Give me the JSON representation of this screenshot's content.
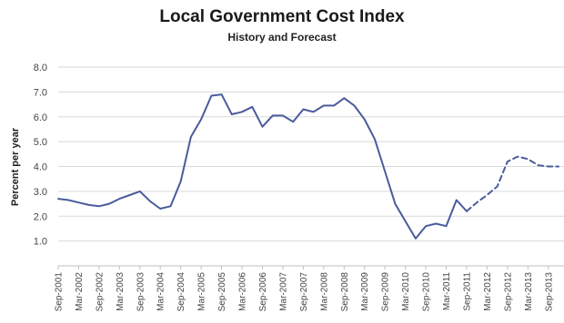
{
  "chart_data": {
    "type": "line",
    "title": "Local Government Cost Index",
    "subtitle": "History and Forecast",
    "xlabel": "",
    "ylabel": "Percent per year",
    "ylim": [
      0,
      8
    ],
    "y_ticks": [
      "",
      "1.0",
      "2.0",
      "3.0",
      "4.0",
      "5.0",
      "6.0",
      "7.0",
      "8.0"
    ],
    "grid": true,
    "legend": "none",
    "x_tick_labels": [
      "Sep-2001",
      "Mar-2002",
      "Sep-2002",
      "Mar-2003",
      "Sep-2003",
      "Mar-2004",
      "Sep-2004",
      "Mar-2005",
      "Sep-2005",
      "Mar-2006",
      "Sep-2006",
      "Mar-2007",
      "Sep-2007",
      "Mar-2008",
      "Sep-2008",
      "Mar-2009",
      "Sep-2009",
      "Mar-2010",
      "Sep-2010",
      "Mar-2011",
      "Sep-2011",
      "Mar-2012",
      "Sep-2012",
      "Mar-2013",
      "Sep-2013"
    ],
    "series": [
      {
        "style": "solid",
        "points": [
          [
            "Sep-2001",
            2.7
          ],
          [
            "Dec-2001",
            2.65
          ],
          [
            "Mar-2002",
            2.55
          ],
          [
            "Jun-2002",
            2.45
          ],
          [
            "Sep-2002",
            2.4
          ],
          [
            "Dec-2002",
            2.5
          ],
          [
            "Mar-2003",
            2.7
          ],
          [
            "Jun-2003",
            2.85
          ],
          [
            "Sep-2003",
            3.0
          ],
          [
            "Dec-2003",
            2.6
          ],
          [
            "Mar-2004",
            2.3
          ],
          [
            "Jun-2004",
            2.4
          ],
          [
            "Sep-2004",
            3.4
          ],
          [
            "Dec-2004",
            5.2
          ],
          [
            "Mar-2005",
            5.9
          ],
          [
            "Jun-2005",
            6.85
          ],
          [
            "Sep-2005",
            6.9
          ],
          [
            "Dec-2005",
            6.1
          ],
          [
            "Mar-2006",
            6.2
          ],
          [
            "Jun-2006",
            6.4
          ],
          [
            "Sep-2006",
            5.6
          ],
          [
            "Dec-2006",
            6.05
          ],
          [
            "Mar-2007",
            6.05
          ],
          [
            "Jun-2007",
            5.8
          ],
          [
            "Sep-2007",
            6.3
          ],
          [
            "Dec-2007",
            6.2
          ],
          [
            "Mar-2008",
            6.45
          ],
          [
            "Jun-2008",
            6.45
          ],
          [
            "Sep-2008",
            6.75
          ],
          [
            "Dec-2008",
            6.45
          ],
          [
            "Mar-2009",
            5.9
          ],
          [
            "Jun-2009",
            5.1
          ],
          [
            "Sep-2009",
            3.8
          ],
          [
            "Dec-2009",
            2.5
          ],
          [
            "Mar-2010",
            1.8
          ],
          [
            "Jun-2010",
            1.1
          ],
          [
            "Sep-2010",
            1.6
          ],
          [
            "Dec-2010",
            1.7
          ],
          [
            "Mar-2011",
            1.6
          ],
          [
            "Jun-2011",
            2.65
          ],
          [
            "Sep-2011",
            2.2
          ]
        ]
      },
      {
        "style": "dashed",
        "points": [
          [
            "Sep-2011",
            2.2
          ],
          [
            "Dec-2011",
            2.55
          ],
          [
            "Mar-2012",
            2.85
          ],
          [
            "Jun-2012",
            3.2
          ],
          [
            "Sep-2012",
            4.2
          ],
          [
            "Dec-2012",
            4.4
          ],
          [
            "Mar-2013",
            4.3
          ],
          [
            "Jun-2013",
            4.05
          ],
          [
            "Sep-2013",
            4.0
          ],
          [
            "Dec-2013",
            4.0
          ]
        ]
      }
    ],
    "colors": {
      "line": "#4a5b9c",
      "grid": "#d9d9d9",
      "axis": "#bfbfbf"
    }
  }
}
